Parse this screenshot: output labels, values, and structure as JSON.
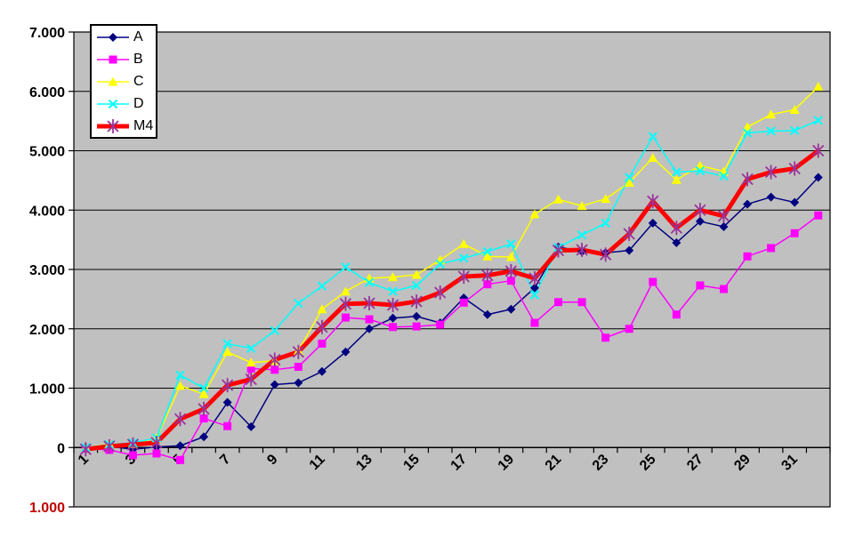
{
  "chart_data": {
    "type": "line",
    "title": "",
    "xlabel": "",
    "ylabel": "",
    "grid": true,
    "plot_bg": "#C0C0C0",
    "legend_position": "top-left-inside",
    "value_format": "thousands-dot-separator",
    "ylim": [
      -1000,
      7000
    ],
    "y_tick_step": 1000,
    "y_ticks": [
      {
        "value": 7000,
        "label": "7.000",
        "color": "#000000"
      },
      {
        "value": 6000,
        "label": "6.000",
        "color": "#000000"
      },
      {
        "value": 5000,
        "label": "5.000",
        "color": "#000000"
      },
      {
        "value": 4000,
        "label": "4.000",
        "color": "#000000"
      },
      {
        "value": 3000,
        "label": "3.000",
        "color": "#000000"
      },
      {
        "value": 2000,
        "label": "2.000",
        "color": "#000000"
      },
      {
        "value": 1000,
        "label": "1.000",
        "color": "#000000"
      },
      {
        "value": 0,
        "label": "0",
        "color": "#000000"
      },
      {
        "value": -1000,
        "label": "1.000",
        "color": "#C00000"
      }
    ],
    "x": [
      1,
      2,
      3,
      4,
      5,
      6,
      7,
      8,
      9,
      10,
      11,
      12,
      13,
      14,
      15,
      16,
      17,
      18,
      19,
      20,
      21,
      22,
      23,
      24,
      25,
      26,
      27,
      28,
      29,
      30,
      31,
      32
    ],
    "x_tick_labels_shown": [
      "1",
      "3",
      "5",
      "7",
      "9",
      "11",
      "13",
      "15",
      "17",
      "19",
      "21",
      "23",
      "25",
      "27",
      "29",
      "31"
    ],
    "x_label_rotation_deg": -45,
    "series": [
      {
        "name": "A",
        "color": "#000080",
        "marker": "diamond",
        "line_width": 1.5,
        "values": [
          0,
          20,
          -30,
          10,
          30,
          180,
          760,
          350,
          1060,
          1090,
          1280,
          1610,
          2000,
          2180,
          2210,
          2100,
          2520,
          2240,
          2330,
          2690,
          3380,
          3300,
          3280,
          3320,
          3780,
          3450,
          3810,
          3720,
          4100,
          4220,
          4130,
          4550
        ]
      },
      {
        "name": "B",
        "color": "#FF00FF",
        "marker": "square",
        "line_width": 1.5,
        "values": [
          -20,
          -40,
          -130,
          -100,
          -210,
          490,
          360,
          1330,
          1310,
          1360,
          1750,
          2190,
          2160,
          2030,
          2040,
          2070,
          2440,
          2750,
          2810,
          2100,
          2450,
          2450,
          1850,
          2000,
          2790,
          2240,
          2730,
          2670,
          3220,
          3360,
          3610,
          3910
        ]
      },
      {
        "name": "C",
        "color": "#FFFF00",
        "marker": "triangle",
        "line_width": 1.5,
        "values": [
          0,
          60,
          60,
          160,
          1040,
          900,
          1610,
          1430,
          1460,
          1630,
          2330,
          2630,
          2850,
          2870,
          2910,
          3160,
          3430,
          3220,
          3210,
          3930,
          4180,
          4070,
          4190,
          4460,
          4880,
          4510,
          4750,
          4650,
          5400,
          5610,
          5690,
          6080
        ]
      },
      {
        "name": "D",
        "color": "#00FFFF",
        "marker": "x",
        "line_width": 1.5,
        "values": [
          0,
          50,
          80,
          160,
          1220,
          1000,
          1750,
          1670,
          1970,
          2430,
          2720,
          3040,
          2780,
          2630,
          2730,
          3090,
          3190,
          3300,
          3430,
          2570,
          3370,
          3580,
          3780,
          4550,
          5240,
          4640,
          4660,
          4570,
          5300,
          5330,
          5340,
          5510
        ]
      },
      {
        "name": "M4",
        "color": "#FF0000",
        "marker": "star",
        "marker_color": "#993399",
        "line_width": 5,
        "values": [
          -30,
          20,
          50,
          80,
          480,
          650,
          1050,
          1150,
          1480,
          1610,
          2030,
          2420,
          2430,
          2400,
          2460,
          2610,
          2880,
          2900,
          2970,
          2850,
          3320,
          3330,
          3250,
          3600,
          4150,
          3700,
          4000,
          3900,
          4520,
          4640,
          4700,
          5000
        ]
      }
    ]
  },
  "legend": {
    "items": [
      "A",
      "B",
      "C",
      "D",
      "M4"
    ]
  }
}
